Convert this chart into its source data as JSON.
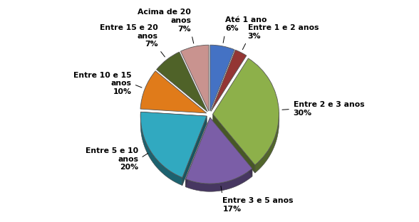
{
  "labels": [
    "Até 1 ano\n6%",
    "Entre 1 e 2 anos\n3%",
    "Entre 2 e 3 anos\n30%",
    "Entre 3 e 5 anos\n17%",
    "Entre 5 e 10\nanos\n20%",
    "Entre 10 e 15\nanos\n10%",
    "Entre 15 e 20\nanos\n7%",
    "Acima de 20\nanos\n7%"
  ],
  "values": [
    6,
    3,
    30,
    17,
    20,
    10,
    7,
    7
  ],
  "colors": [
    "#4472C4",
    "#943634",
    "#8DB04A",
    "#7B5EA7",
    "#31A9C0",
    "#E07B1A",
    "#4F6228",
    "#C9938F"
  ],
  "startangle": 90,
  "depth": 0.12,
  "label_positions": [
    [
      0.0,
      1.38,
      "center",
      "bottom"
    ],
    [
      0.38,
      1.32,
      "left",
      "center"
    ],
    [
      1.45,
      0.25,
      "left",
      "center"
    ],
    [
      0.35,
      -1.38,
      "center",
      "top"
    ],
    [
      -0.85,
      -1.35,
      "center",
      "top"
    ],
    [
      -1.5,
      0.3,
      "right",
      "center"
    ],
    [
      -1.15,
      0.85,
      "right",
      "center"
    ],
    [
      -0.25,
      1.35,
      "center",
      "top"
    ]
  ]
}
